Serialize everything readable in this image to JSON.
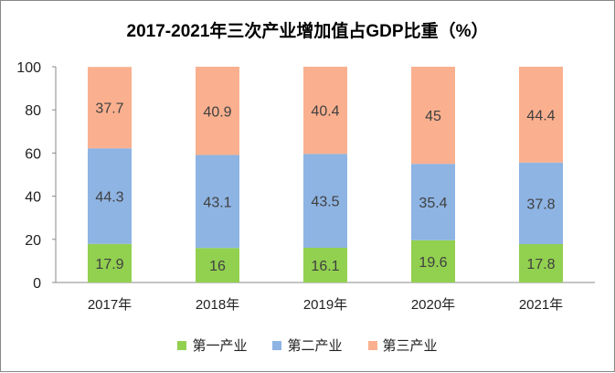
{
  "chart_data": {
    "type": "bar",
    "stacked": true,
    "title": "2017-2021年三次产业增加值占GDP比重（%）",
    "categories": [
      "2017年",
      "2018年",
      "2019年",
      "2020年",
      "2021年"
    ],
    "series": [
      {
        "name": "第一产业",
        "color": "#92d050",
        "values": [
          17.9,
          16,
          16.1,
          19.6,
          17.8
        ]
      },
      {
        "name": "第二产业",
        "color": "#8eb4e3",
        "values": [
          44.3,
          43.1,
          43.5,
          35.4,
          37.8
        ]
      },
      {
        "name": "第三产业",
        "color": "#fab08f",
        "values": [
          37.7,
          40.9,
          40.4,
          45,
          44.4
        ]
      }
    ],
    "ylim": [
      0,
      100
    ],
    "yticks": [
      0,
      20,
      40,
      60,
      80,
      100
    ],
    "grid": false,
    "legend_position": "bottom",
    "data_labels": true
  }
}
